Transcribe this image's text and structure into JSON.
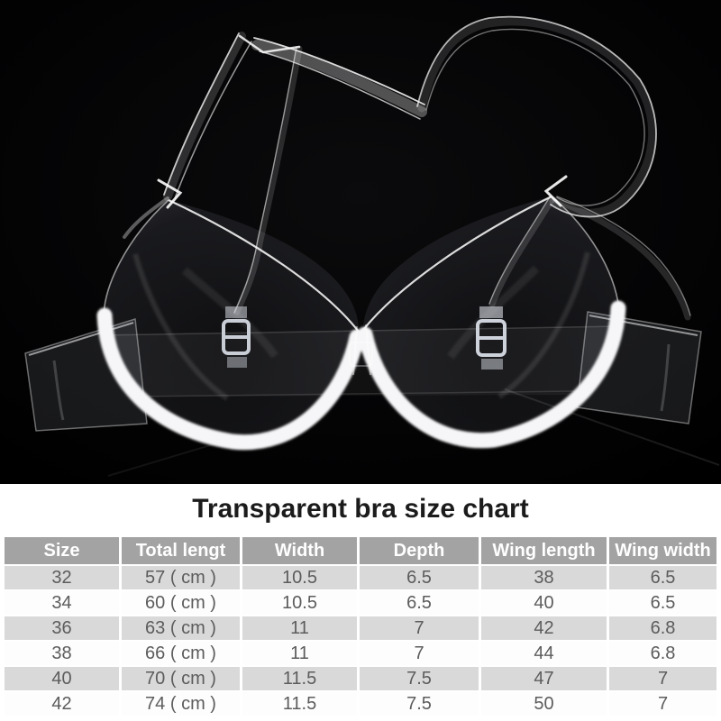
{
  "title": "Transparent bra size chart",
  "photo": {
    "description": "Transparent clear plastic push-up bra with clear film straps, white underwire trim and metal strap sliders, photographed on a black background",
    "background_color": "#000000",
    "trim_color": "#ffffff"
  },
  "chart_data": {
    "type": "table",
    "title": "Transparent bra size chart",
    "columns": [
      "Size",
      "Total lengt",
      "Width",
      "Depth",
      "Wing length",
      "Wing width"
    ],
    "rows": [
      [
        "32",
        "57 ( cm )",
        "10.5",
        "6.5",
        "38",
        "6.5"
      ],
      [
        "34",
        "60 ( cm )",
        "10.5",
        "6.5",
        "40",
        "6.5"
      ],
      [
        "36",
        "63 ( cm )",
        "11",
        "7",
        "42",
        "6.8"
      ],
      [
        "38",
        "66 ( cm )",
        "11",
        "7",
        "44",
        "6.8"
      ],
      [
        "40",
        "70 ( cm )",
        "11.5",
        "7.5",
        "47",
        "7"
      ],
      [
        "42",
        "74 ( cm )",
        "11.5",
        "7.5",
        "50",
        "7"
      ]
    ]
  },
  "colors": {
    "section_bg": "#ffffff",
    "title_text": "#1b1b1b",
    "header_bg": "#a3a3a3",
    "header_text": "#ffffff",
    "row_shaded_bg": "#d9d9d9",
    "row_plain_bg": "#fdfdfd",
    "cell_text": "#5c5c5c"
  }
}
